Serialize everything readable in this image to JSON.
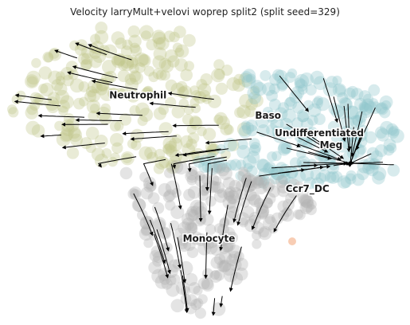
{
  "title": "Velocity larryMult+velovi woprep split2 (split seed=329)",
  "chart_data": {
    "type": "scatter",
    "subtype": "velocity-stream-embedding",
    "title": "Velocity larryMult+velovi woprep split2 (split seed=329)",
    "xlabel": "",
    "ylabel": "",
    "axes_visible": false,
    "grid": false,
    "legend": "on-data",
    "colors": {
      "Neutrophil": "#bfc78a",
      "Undifferentiated": "#8fc6cc",
      "Monocyte": "#b3b3b3",
      "Ccr7_DC": "#f5b894",
      "stream": "#000000"
    },
    "clusters": [
      {
        "name": "Neutrophil",
        "label_x": 0.33,
        "label_y": 0.74
      },
      {
        "name": "Baso",
        "label_x": 0.66,
        "label_y": 0.67
      },
      {
        "name": "Undifferentiated",
        "label_x": 0.79,
        "label_y": 0.61
      },
      {
        "name": "Meg",
        "label_x": 0.82,
        "label_y": 0.57
      },
      {
        "name": "Ccr7_DC",
        "display": "Ccr7_DC",
        "label_x": 0.76,
        "label_y": 0.42
      },
      {
        "name": "Monocyte",
        "label_x": 0.51,
        "label_y": 0.25
      }
    ]
  }
}
